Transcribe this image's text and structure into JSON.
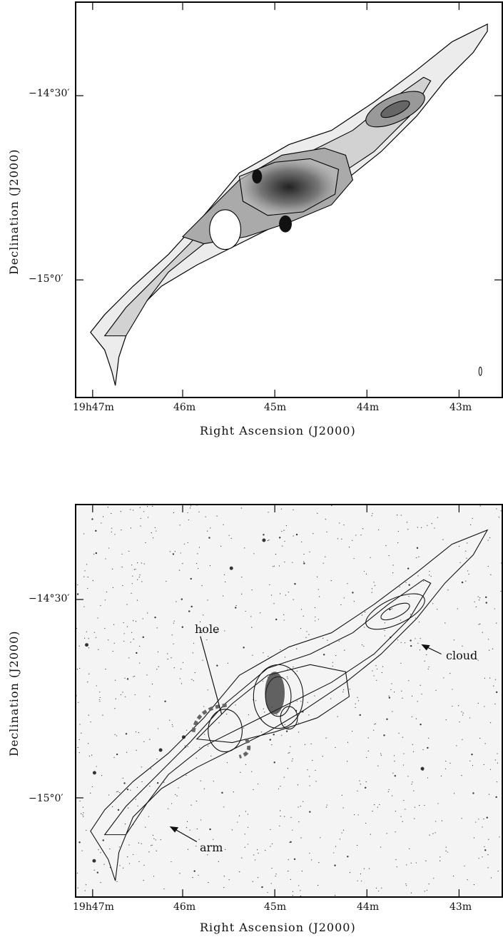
{
  "top": {
    "ylabel": "Declination (J2000)",
    "xlabel": "Right Ascension (J2000)",
    "yticks": [
      "−14°30′",
      "−15°0′"
    ],
    "xticks": [
      "19h47m",
      "46m",
      "45m",
      "44m",
      "43m"
    ]
  },
  "bottom": {
    "ylabel": "Declination (J2000)",
    "xlabel": "Right Ascension (J2000)",
    "yticks": [
      "−14°30′",
      "−15°0′"
    ],
    "xticks": [
      "19h47m",
      "46m",
      "45m",
      "44m",
      "43m"
    ],
    "annotations": {
      "hole": "hole",
      "cloud": "cloud",
      "arm": "arm"
    }
  }
}
